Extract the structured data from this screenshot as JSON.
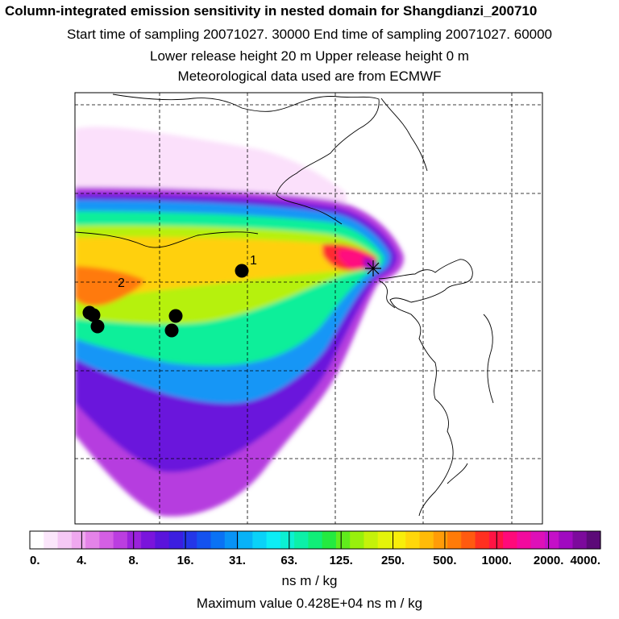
{
  "header": {
    "title": "Column-integrated emission sensitivity in nested domain for Shangdianzi_200710",
    "sampling": "Start time of sampling 20071027. 30000     End time of sampling 20071027. 60000",
    "release": "Lower release height   20 m          Upper release height    0 m",
    "met": "Meteorological data used are from ECMWF"
  },
  "chart_data": {
    "type": "heatmap",
    "title": "Column-integrated emission sensitivity in nested domain for Shangdianzi_200710",
    "colorbar": {
      "unit_label": "ns m / kg",
      "tick_labels": [
        "0.",
        "4.",
        "8.",
        "16.",
        "31.",
        "63.",
        "125.",
        "250.",
        "500.",
        "1000.",
        "2000.",
        "4000."
      ],
      "colors": [
        "#ffffff",
        "#fbe6fb",
        "#f5c8f5",
        "#efa8ef",
        "#e483e8",
        "#d45fe4",
        "#bb3ee0",
        "#9a22dc",
        "#7a14dc",
        "#5a14dc",
        "#3c1ee0",
        "#2436e8",
        "#1452ef",
        "#0a72f4",
        "#0893f6",
        "#08b2f7",
        "#0ad2f8",
        "#0cedf5",
        "#0cf0d3",
        "#0cf0a8",
        "#10ee78",
        "#24ea40",
        "#60ec1c",
        "#98f00c",
        "#c4f20a",
        "#e4f40a",
        "#f8ee0a",
        "#ffd70a",
        "#ffbb08",
        "#ff9c08",
        "#ff7b08",
        "#ff5a10",
        "#ff3020",
        "#ff1444",
        "#ff0a7a",
        "#f20a9e",
        "#de10b8",
        "#c410c8",
        "#a00ac0",
        "#7c0a9c",
        "#5c0a78"
      ]
    },
    "max_value_text": "Maximum value  0.428E+04 ns m / kg",
    "receptor": {
      "name": "Shangdianzi",
      "marker": "star"
    },
    "labeled_points": [
      {
        "label": "1",
        "marker": "dot"
      },
      {
        "label": "2",
        "marker": "none"
      }
    ],
    "unlabeled_points": 5,
    "gridlines": "dashed",
    "legend_position": "bottom"
  }
}
